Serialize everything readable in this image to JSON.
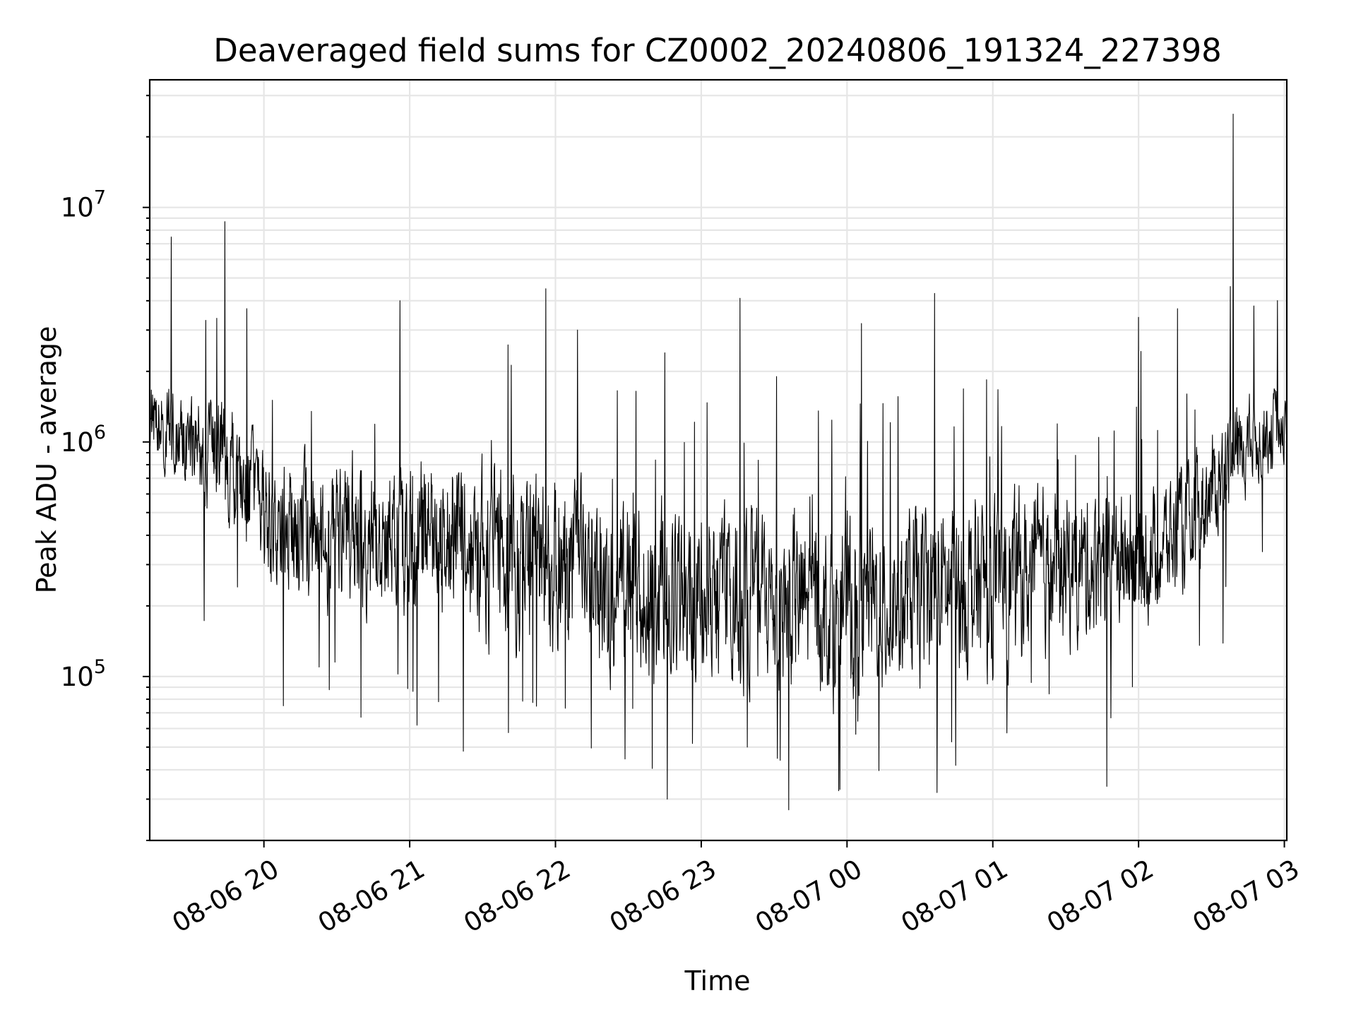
{
  "chart_data": {
    "type": "line",
    "title": "Deaveraged field sums for CZ0002_20240806_191324_227398",
    "xlabel": "Time",
    "ylabel": "Peak ADU - average",
    "yscale": "log",
    "ylim": [
      20000,
      35000000
    ],
    "xlim": [
      "2024-08-06 19:13",
      "2024-08-07 03:01"
    ],
    "grid": true,
    "line_color": "#000000",
    "x_ticks": [
      {
        "t": "2024-08-06 20:00",
        "label": "08-06 20"
      },
      {
        "t": "2024-08-06 21:00",
        "label": "08-06 21"
      },
      {
        "t": "2024-08-06 22:00",
        "label": "08-06 22"
      },
      {
        "t": "2024-08-06 23:00",
        "label": "08-06 23"
      },
      {
        "t": "2024-08-07 00:00",
        "label": "08-07 00"
      },
      {
        "t": "2024-08-07 01:00",
        "label": "08-07 01"
      },
      {
        "t": "2024-08-07 02:00",
        "label": "08-07 02"
      },
      {
        "t": "2024-08-07 03:00",
        "label": "08-07 03"
      }
    ],
    "y_ticks": [
      {
        "value": 100000,
        "base": "10",
        "exp": "5"
      },
      {
        "value": 1000000,
        "base": "10",
        "exp": "6"
      },
      {
        "value": 10000000,
        "base": "10",
        "exp": "7"
      }
    ],
    "series": [
      {
        "envelope": {
          "x": [
            "2024-08-06 19:13",
            "2024-08-06 19:30",
            "2024-08-06 19:45",
            "2024-08-06 20:00",
            "2024-08-06 20:20",
            "2024-08-06 20:40",
            "2024-08-06 21:00",
            "2024-08-06 21:30",
            "2024-08-06 22:00",
            "2024-08-06 22:30",
            "2024-08-06 23:00",
            "2024-08-06 23:30",
            "2024-08-07 00:00",
            "2024-08-07 00:30",
            "2024-08-07 01:00",
            "2024-08-07 01:30",
            "2024-08-07 02:00",
            "2024-08-07 02:20",
            "2024-08-07 02:40",
            "2024-08-07 03:01"
          ],
          "median": [
            1250000,
            1000000,
            800000,
            500000,
            400000,
            400000,
            420000,
            350000,
            300000,
            230000,
            220000,
            210000,
            200000,
            220000,
            250000,
            290000,
            320000,
            420000,
            900000,
            1250000
          ]
        },
        "peaks": [
          {
            "t": "2024-08-06 19:36",
            "value": 3300000
          },
          {
            "t": "2024-08-06 19:44",
            "value": 8700000
          },
          {
            "t": "2024-08-06 19:53",
            "value": 3700000
          },
          {
            "t": "2024-08-06 20:56",
            "value": 4000000
          },
          {
            "t": "2024-08-06 21:56",
            "value": 4500000
          },
          {
            "t": "2024-08-06 22:09",
            "value": 3000000
          },
          {
            "t": "2024-08-06 22:45",
            "value": 2400000
          },
          {
            "t": "2024-08-06 23:16",
            "value": 4100000
          },
          {
            "t": "2024-08-06 23:31",
            "value": 1900000
          },
          {
            "t": "2024-08-07 00:06",
            "value": 3200000
          },
          {
            "t": "2024-08-07 00:36",
            "value": 4300000
          },
          {
            "t": "2024-08-07 01:47",
            "value": 2600000
          },
          {
            "t": "2024-08-07 02:00",
            "value": 3400000
          },
          {
            "t": "2024-08-07 02:16",
            "value": 3700000
          },
          {
            "t": "2024-08-07 02:39",
            "value": 25000000
          }
        ],
        "dips": [
          {
            "t": "2024-08-06 20:08",
            "value": 75000
          },
          {
            "t": "2024-08-06 20:40",
            "value": 67000
          },
          {
            "t": "2024-08-06 21:03",
            "value": 62000
          },
          {
            "t": "2024-08-06 21:22",
            "value": 48000
          },
          {
            "t": "2024-08-06 22:46",
            "value": 30000
          },
          {
            "t": "2024-08-06 23:36",
            "value": 27000
          },
          {
            "t": "2024-08-06 23:57",
            "value": 33000
          },
          {
            "t": "2024-08-07 00:37",
            "value": 32000
          },
          {
            "t": "2024-08-07 01:47",
            "value": 34000
          }
        ]
      }
    ]
  }
}
